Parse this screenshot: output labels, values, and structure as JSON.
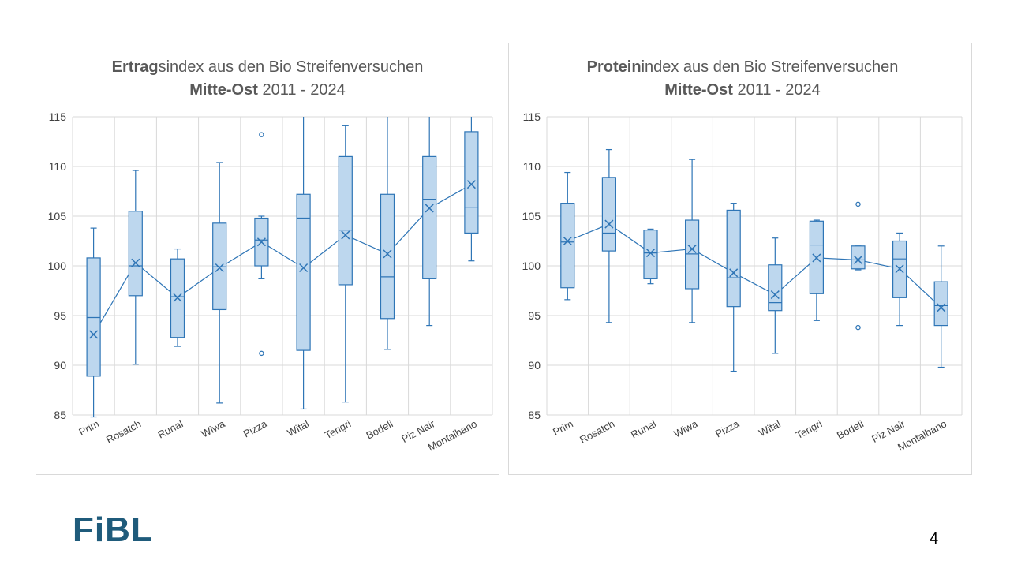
{
  "slide": {
    "logo_text": "FiBL",
    "page_number": "4"
  },
  "colors": {
    "box_fill": "#bdd7ee",
    "stroke": "#2e75b6",
    "grid": "#d9d9d9",
    "logo": "#1f5b7b"
  },
  "chart_data": [
    {
      "type": "box",
      "title_line1": {
        "bold": "Ertrag",
        "rest": "sindex aus den Bio Streifenversuchen"
      },
      "title_line2": {
        "bold": "Mitte-Ost",
        "rest": " 2011 - 2024"
      },
      "ylim": [
        85,
        115
      ],
      "yticks": [
        85,
        90,
        95,
        100,
        105,
        110,
        115
      ],
      "grid": true,
      "categories": [
        "Prim",
        "Rosatch",
        "Runal",
        "Wiwa",
        "Pizza",
        "Wital",
        "Tengri",
        "Bodeli",
        "Piz Nair",
        "Montalbano"
      ],
      "boxes": [
        {
          "min": 84.8,
          "q1": 88.9,
          "median": 94.8,
          "q3": 100.8,
          "max": 103.8,
          "mean": 93.1,
          "outliers": []
        },
        {
          "min": 90.1,
          "q1": 97.0,
          "median": 100.0,
          "q3": 105.5,
          "max": 109.6,
          "mean": 100.3,
          "outliers": []
        },
        {
          "min": 91.9,
          "q1": 92.8,
          "median": 96.9,
          "q3": 100.7,
          "max": 101.7,
          "mean": 96.8,
          "outliers": []
        },
        {
          "min": 86.2,
          "q1": 95.6,
          "median": 99.9,
          "q3": 104.3,
          "max": 110.4,
          "mean": 99.8,
          "outliers": []
        },
        {
          "min": 98.7,
          "q1": 100.0,
          "median": 102.6,
          "q3": 104.8,
          "max": 105.0,
          "mean": 102.4,
          "outliers": [
            113.2,
            91.2
          ]
        },
        {
          "min": 85.6,
          "q1": 91.5,
          "median": 104.8,
          "q3": 107.2,
          "max": 115,
          "mean": 99.8,
          "outliers": []
        },
        {
          "min": 86.3,
          "q1": 98.1,
          "median": 103.6,
          "q3": 111.0,
          "max": 114.1,
          "mean": 103.1,
          "outliers": []
        },
        {
          "min": 91.6,
          "q1": 94.7,
          "median": 98.9,
          "q3": 107.2,
          "max": 115,
          "mean": 101.2,
          "outliers": []
        },
        {
          "min": 94.0,
          "q1": 98.7,
          "median": 106.7,
          "q3": 111.0,
          "max": 115,
          "mean": 105.8,
          "outliers": []
        },
        {
          "min": 100.5,
          "q1": 103.3,
          "median": 105.9,
          "q3": 113.5,
          "max": 115,
          "mean": 108.2,
          "outliers": []
        }
      ]
    },
    {
      "type": "box",
      "title_line1": {
        "bold": "Protein",
        "rest": "index aus den Bio Streifenversuchen"
      },
      "title_line2": {
        "bold": "Mitte-Ost",
        "rest": " 2011 - 2024"
      },
      "ylim": [
        85,
        115
      ],
      "yticks": [
        85,
        90,
        95,
        100,
        105,
        110,
        115
      ],
      "grid": true,
      "categories": [
        "Prim",
        "Rosatch",
        "Runal",
        "Wiwa",
        "Pizza",
        "Wital",
        "Tengri",
        "Bodeli",
        "Piz Nair",
        "Montalbano"
      ],
      "boxes": [
        {
          "min": 96.6,
          "q1": 97.8,
          "median": 102.4,
          "q3": 106.3,
          "max": 109.4,
          "mean": 102.5,
          "outliers": []
        },
        {
          "min": 94.3,
          "q1": 101.5,
          "median": 103.3,
          "q3": 108.9,
          "max": 111.7,
          "mean": 104.2,
          "outliers": []
        },
        {
          "min": 98.2,
          "q1": 98.7,
          "median": 101.3,
          "q3": 103.6,
          "max": 103.7,
          "mean": 101.3,
          "outliers": []
        },
        {
          "min": 94.3,
          "q1": 97.7,
          "median": 101.2,
          "q3": 104.6,
          "max": 110.7,
          "mean": 101.7,
          "outliers": []
        },
        {
          "min": 89.4,
          "q1": 95.9,
          "median": 98.8,
          "q3": 105.6,
          "max": 106.3,
          "mean": 99.3,
          "outliers": []
        },
        {
          "min": 91.2,
          "q1": 95.5,
          "median": 96.3,
          "q3": 100.1,
          "max": 102.8,
          "mean": 97.1,
          "outliers": []
        },
        {
          "min": 94.5,
          "q1": 97.2,
          "median": 102.1,
          "q3": 104.5,
          "max": 104.6,
          "mean": 100.8,
          "outliers": []
        },
        {
          "min": 99.6,
          "q1": 99.7,
          "median": 100.6,
          "q3": 102.0,
          "max": 102.0,
          "mean": 100.6,
          "outliers": [
            106.2,
            93.8
          ]
        },
        {
          "min": 94.0,
          "q1": 96.8,
          "median": 100.7,
          "q3": 102.5,
          "max": 103.3,
          "mean": 99.7,
          "outliers": []
        },
        {
          "min": 89.8,
          "q1": 94.0,
          "median": 96.0,
          "q3": 98.4,
          "max": 102.0,
          "mean": 95.8,
          "outliers": []
        }
      ]
    }
  ]
}
